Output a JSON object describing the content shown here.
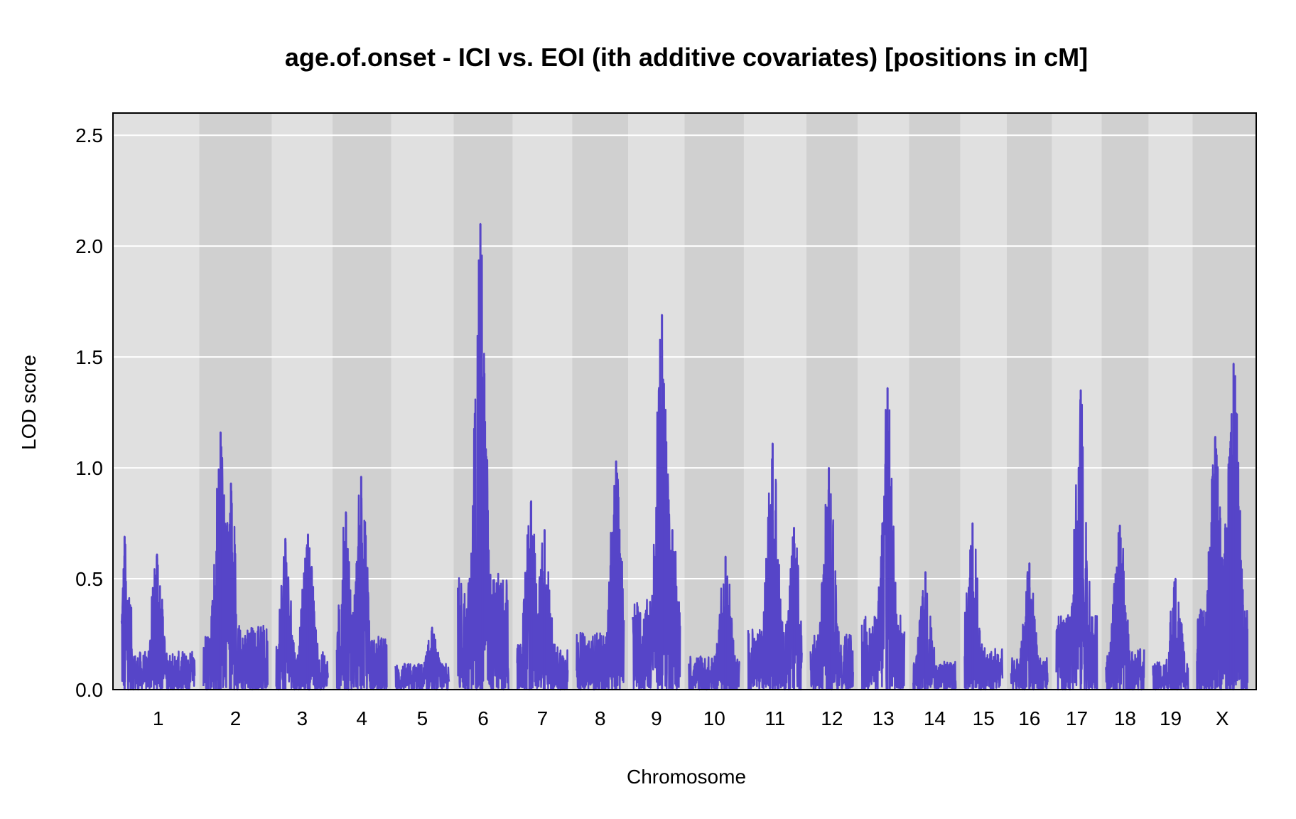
{
  "chart_data": {
    "type": "line",
    "title": "age.of.onset - ICI vs. EOI (ith additive covariates) [positions in cM]",
    "xlabel": "Chromosome",
    "ylabel": "LOD score",
    "ylim": [
      0,
      2.6
    ],
    "yticks": [
      "0.0",
      "0.5",
      "1.0",
      "1.5",
      "2.0",
      "2.5"
    ],
    "grid": true,
    "colors": {
      "line": "#5645C8",
      "band_light": "#E0E0E0",
      "band_dark": "#D0D0D0",
      "grid": "#FFFFFF"
    },
    "chromosomes": [
      "1",
      "2",
      "3",
      "4",
      "5",
      "6",
      "7",
      "8",
      "9",
      "10",
      "11",
      "12",
      "13",
      "14",
      "15",
      "16",
      "17",
      "18",
      "19",
      "X"
    ],
    "chromosome_lengths_cM": [
      120,
      105,
      85,
      82,
      88,
      83,
      83,
      78,
      78,
      83,
      88,
      70,
      70,
      70,
      62,
      60,
      67,
      63,
      58,
      83
    ],
    "series": [
      {
        "peaks": [
          {
            "chr": "1",
            "pos_cM": 5,
            "lod": 0.69
          },
          {
            "chr": "1",
            "pos_cM": 58,
            "lod": 0.61
          },
          {
            "chr": "2",
            "pos_cM": 28,
            "lod": 1.16
          },
          {
            "chr": "2",
            "pos_cM": 45,
            "lod": 0.93
          },
          {
            "chr": "3",
            "pos_cM": 15,
            "lod": 0.68
          },
          {
            "chr": "3",
            "pos_cM": 52,
            "lod": 0.7
          },
          {
            "chr": "4",
            "pos_cM": 15,
            "lod": 0.8
          },
          {
            "chr": "4",
            "pos_cM": 40,
            "lod": 0.96
          },
          {
            "chr": "5",
            "pos_cM": 60,
            "lod": 0.28
          },
          {
            "chr": "6",
            "pos_cM": 37,
            "lod": 2.1
          },
          {
            "chr": "6",
            "pos_cM": 40,
            "lod": 1.41
          },
          {
            "chr": "7",
            "pos_cM": 23,
            "lod": 0.85
          },
          {
            "chr": "7",
            "pos_cM": 45,
            "lod": 0.72
          },
          {
            "chr": "8",
            "pos_cM": 65,
            "lod": 1.03
          },
          {
            "chr": "9",
            "pos_cM": 48,
            "lod": 1.69
          },
          {
            "chr": "9",
            "pos_cM": 65,
            "lod": 0.72
          },
          {
            "chr": "10",
            "pos_cM": 60,
            "lod": 0.6
          },
          {
            "chr": "11",
            "pos_cM": 40,
            "lod": 1.11
          },
          {
            "chr": "11",
            "pos_cM": 75,
            "lod": 0.73
          },
          {
            "chr": "12",
            "pos_cM": 30,
            "lod": 1.0
          },
          {
            "chr": "13",
            "pos_cM": 42,
            "lod": 1.36
          },
          {
            "chr": "14",
            "pos_cM": 20,
            "lod": 0.53
          },
          {
            "chr": "15",
            "pos_cM": 13,
            "lod": 0.75
          },
          {
            "chr": "16",
            "pos_cM": 30,
            "lod": 0.57
          },
          {
            "chr": "17",
            "pos_cM": 40,
            "lod": 1.35
          },
          {
            "chr": "18",
            "pos_cM": 23,
            "lod": 0.74
          },
          {
            "chr": "19",
            "pos_cM": 37,
            "lod": 0.5
          },
          {
            "chr": "X",
            "pos_cM": 60,
            "lod": 1.47
          },
          {
            "chr": "X",
            "pos_cM": 30,
            "lod": 1.14
          },
          {
            "chr": "X",
            "pos_cM": 55,
            "lod": 1.12
          }
        ]
      }
    ]
  }
}
